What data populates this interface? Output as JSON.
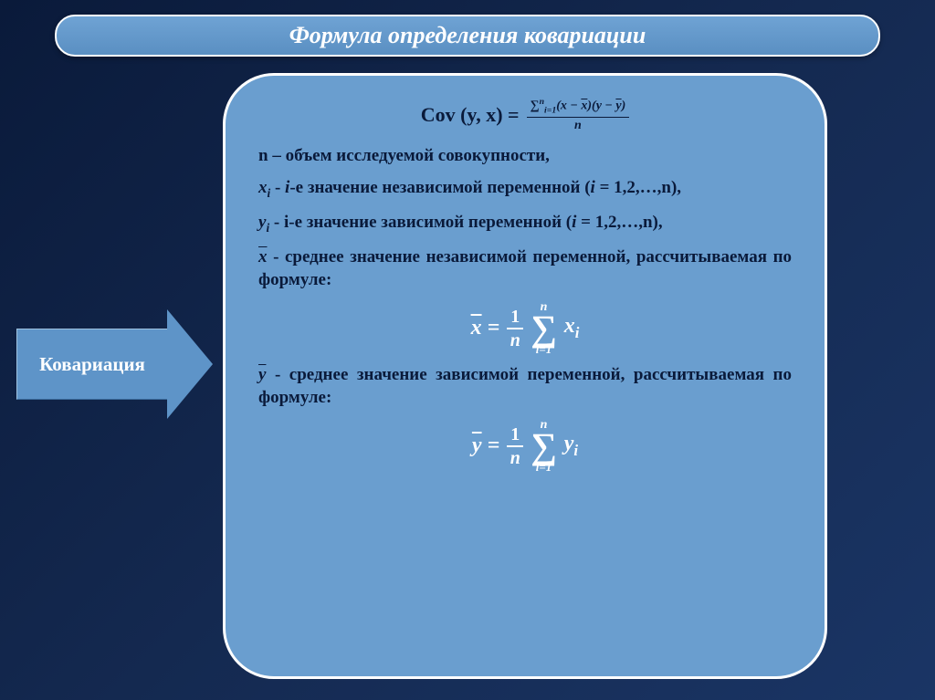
{
  "slide": {
    "title": "Формула определения ковариации",
    "arrow_label": "Ковариация",
    "colors": {
      "bg_gradient_start": "#0a1a3a",
      "bg_gradient_end": "#1a3565",
      "banner_fill": "#5a8fc2",
      "banner_border": "#ffffff",
      "arrow_fill": "#5e94c8",
      "box_fill": "#6a9ecf",
      "box_border": "#ffffff",
      "text_dark": "#0a1a3a",
      "text_light": "#ffffff"
    },
    "main_formula": {
      "lhs": "Cov (y, x) =",
      "numerator": "∑ᵢ₌₁ⁿ (x − x̄)(y − ȳ)",
      "denominator": "n"
    },
    "definitions": {
      "n_def": "n – объем исследуемой совокупности,",
      "xi_pre": "xᵢ",
      "xi_txt": " - i-е значение независимой переменной (i = 1,2,…,n),",
      "yi_pre": "yᵢ",
      "yi_txt": " - i-е значение зависимой переменной (i = 1,2,…,n),",
      "xbar_pre": "x̄",
      "xbar_txt": " - среднее значение независимой переменной, рассчитываемая по формуле:",
      "ybar_pre": "ȳ",
      "ybar_txt": " - среднее значение зависимой переменной, рассчитываемая по формуле:"
    },
    "mean_formulas": {
      "x_lhs": "x̄ =",
      "y_lhs": "ȳ =",
      "one": "1",
      "n": "n",
      "sum_upper": "n",
      "sum_lower": "i=1",
      "x_term": "xᵢ",
      "y_term": "yᵢ"
    }
  }
}
